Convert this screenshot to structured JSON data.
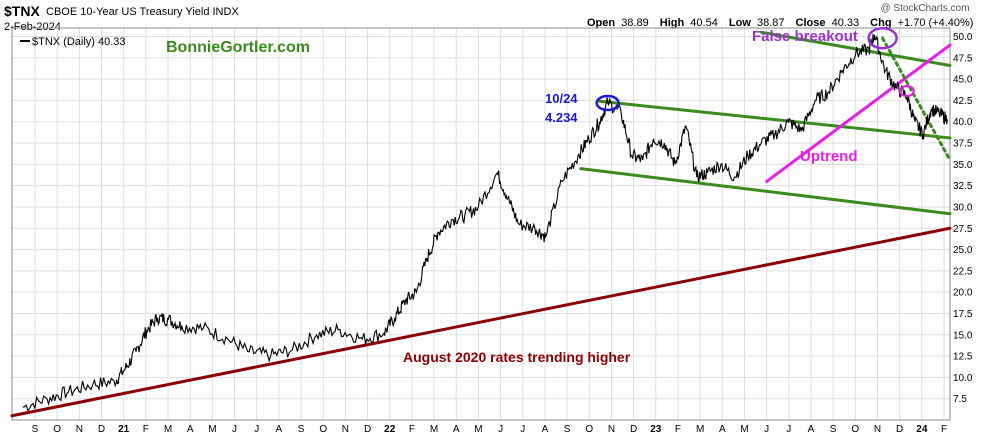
{
  "header": {
    "ticker": "$TNX",
    "description": "CBOE 10-Year US Treasury Yield INDX",
    "date": "2-Feb-2024",
    "legend_text": "$TNX (Daily) 40.33",
    "credit": "@ StockCharts.com"
  },
  "ohlc": {
    "open_label": "Open",
    "open": "38.89",
    "high_label": "High",
    "high": "40.54",
    "low_label": "Low",
    "low": "38.87",
    "close_label": "Close",
    "close": "40.33",
    "chg_label": "Chg",
    "chg": "+1.70 (+4.40%)"
  },
  "annotations": {
    "brand": "BonnieGortler.com",
    "false_breakout": "False breakout",
    "uptrend": "Uptrend",
    "peak_date": "10/24",
    "peak_value": "4.234",
    "long_trend": "August 2020 rates trending higher"
  },
  "colors": {
    "price": "#000000",
    "channel": "#3a8a1e",
    "uptrend": "#e81ee8",
    "long_trend": "#8b0000",
    "circle_blue": "#1a1adf",
    "circle_purple": "#9932cc",
    "brand": "#3a8a1e",
    "peak_label": "#1a1acc",
    "grid": "#dddddd"
  },
  "chart_data": {
    "type": "line",
    "series": [
      {
        "name": "$TNX (Daily)",
        "x": [
          2020.66,
          2020.75,
          2020.83,
          2020.92,
          2021.0,
          2021.04,
          2021.08,
          2021.12,
          2021.16,
          2021.2,
          2021.25,
          2021.33,
          2021.42,
          2021.5,
          2021.58,
          2021.66,
          2021.75,
          2021.83,
          2021.92,
          2022.0,
          2022.04,
          2022.08,
          2022.12,
          2022.16,
          2022.2,
          2022.25,
          2022.3,
          2022.35,
          2022.42,
          2022.46,
          2022.5,
          2022.56,
          2022.6,
          2022.66,
          2022.72,
          2022.76,
          2022.8,
          2022.83,
          2022.88,
          2022.92,
          2022.96,
          2023.0,
          2023.04,
          2023.08,
          2023.12,
          2023.16,
          2023.2,
          2023.25,
          2023.3,
          2023.35,
          2023.4,
          2023.45,
          2023.5,
          2023.55,
          2023.6,
          2023.65,
          2023.7,
          2023.75,
          2023.8,
          2023.82,
          2023.86,
          2023.9,
          2023.94,
          2023.97,
          2024.0,
          2024.03,
          2024.06,
          2024.09
        ],
        "y": [
          6.5,
          7.5,
          8.3,
          9.2,
          9.5,
          11.0,
          13.0,
          15.5,
          17.0,
          16.8,
          16.0,
          15.8,
          14.5,
          13.0,
          12.6,
          13.2,
          15.0,
          15.6,
          14.5,
          15.2,
          17.0,
          19.0,
          20.0,
          24.0,
          27.0,
          28.5,
          29.0,
          30.0,
          34.0,
          31.0,
          28.0,
          27.5,
          26.5,
          33.0,
          36.0,
          38.0,
          40.0,
          42.3,
          41.0,
          36.0,
          35.5,
          38.0,
          37.5,
          35.0,
          39.5,
          33.5,
          34.0,
          35.0,
          33.5,
          36.0,
          37.5,
          38.5,
          40.0,
          39.0,
          42.5,
          43.5,
          46.0,
          48.0,
          48.5,
          50.2,
          46.0,
          44.0,
          43.0,
          40.0,
          38.5,
          41.5,
          41.0,
          40.3
        ]
      }
    ],
    "x_ticks": [
      "S",
      "O",
      "N",
      "D",
      "21",
      "F",
      "M",
      "A",
      "M",
      "J",
      "J",
      "A",
      "S",
      "O",
      "N",
      "D",
      "22",
      "F",
      "M",
      "A",
      "M",
      "J",
      "J",
      "A",
      "S",
      "O",
      "N",
      "D",
      "23",
      "F",
      "M",
      "A",
      "M",
      "J",
      "J",
      "A",
      "S",
      "O",
      "N",
      "D",
      "24",
      "F"
    ],
    "y_ticks": [
      "7.5",
      "10.0",
      "12.5",
      "15.0",
      "17.5",
      "20.0",
      "22.5",
      "25.0",
      "27.5",
      "30.0",
      "32.5",
      "35.0",
      "37.5",
      "40.0",
      "42.5",
      "45.0",
      "47.5",
      "50.0"
    ],
    "ylim": [
      5.0,
      51.0
    ],
    "xlim": [
      2020.62,
      2024.1
    ],
    "grid": true,
    "y_axis_side": "right"
  }
}
